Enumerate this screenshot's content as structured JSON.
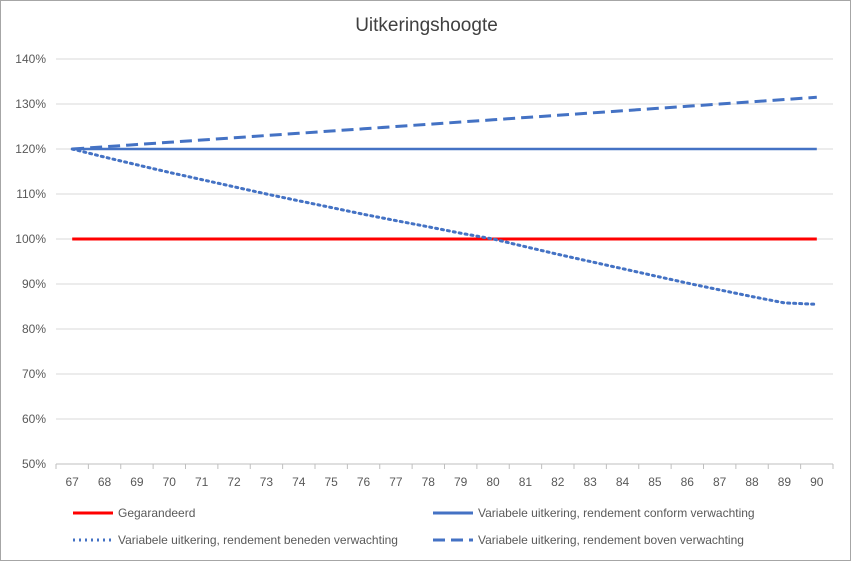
{
  "chart_data": {
    "type": "line",
    "title": "Uitkeringshoogte",
    "xlabel": "",
    "ylabel": "",
    "x": [
      "67",
      "68",
      "69",
      "70",
      "71",
      "72",
      "73",
      "74",
      "75",
      "76",
      "77",
      "78",
      "79",
      "80",
      "81",
      "82",
      "83",
      "84",
      "85",
      "86",
      "87",
      "88",
      "89",
      "90"
    ],
    "y_ticks": [
      "50%",
      "60%",
      "70%",
      "80%",
      "90%",
      "100%",
      "110%",
      "120%",
      "130%",
      "140%"
    ],
    "ylim": [
      50,
      140
    ],
    "grid": true,
    "legend_position": "bottom",
    "series": [
      {
        "name": "Gegarandeerd",
        "color": "#ff0000",
        "style": "solid",
        "values": [
          100,
          100,
          100,
          100,
          100,
          100,
          100,
          100,
          100,
          100,
          100,
          100,
          100,
          100,
          100,
          100,
          100,
          100,
          100,
          100,
          100,
          100,
          100,
          100
        ]
      },
      {
        "name": "Variabele uitkering, rendement conform verwachting",
        "color": "#4472c4",
        "style": "solid",
        "values": [
          120,
          120,
          120,
          120,
          120,
          120,
          120,
          120,
          120,
          120,
          120,
          120,
          120,
          120,
          120,
          120,
          120,
          120,
          120,
          120,
          120,
          120,
          120,
          120
        ]
      },
      {
        "name": "Variabele uitkering, rendement beneden verwachting",
        "color": "#4472c4",
        "style": "dotted",
        "values": [
          120,
          118.2,
          116.5,
          114.8,
          113.2,
          111.6,
          110,
          108.5,
          107,
          105.5,
          104.1,
          102.7,
          101.3,
          100,
          98.3,
          96.6,
          95,
          93.4,
          91.8,
          90.2,
          88.7,
          87.2,
          85.8,
          85.5
        ]
      },
      {
        "name": "Variabele uitkering, rendement boven verwachting",
        "color": "#4472c4",
        "style": "dashed",
        "values": [
          120,
          120.5,
          121,
          121.5,
          122,
          122.5,
          123,
          123.5,
          124,
          124.5,
          125,
          125.5,
          126,
          126.5,
          127,
          127.5,
          128,
          128.5,
          129,
          129.5,
          130,
          130.5,
          131,
          131.5
        ]
      }
    ]
  }
}
